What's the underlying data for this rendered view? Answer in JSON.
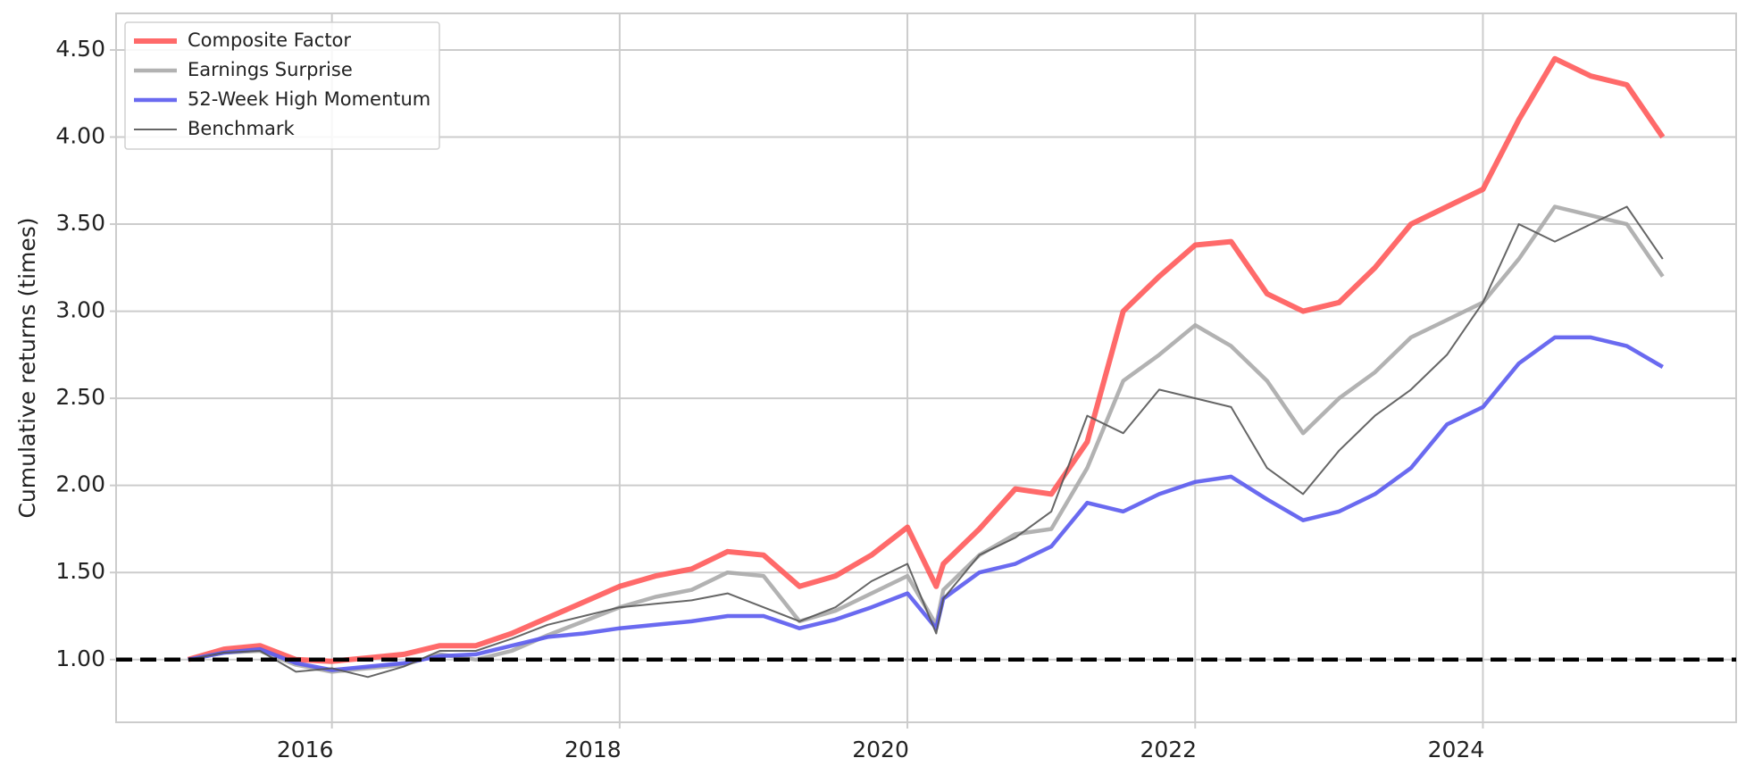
{
  "chart_data": {
    "type": "line",
    "ylabel": "Cumulative returns (times)",
    "x": [
      2015.0,
      2015.25,
      2015.5,
      2015.75,
      2016.0,
      2016.25,
      2016.5,
      2016.75,
      2017.0,
      2017.25,
      2017.5,
      2017.75,
      2018.0,
      2018.25,
      2018.5,
      2018.75,
      2019.0,
      2019.25,
      2019.5,
      2019.75,
      2020.0,
      2020.2,
      2020.25,
      2020.5,
      2020.75,
      2021.0,
      2021.25,
      2021.5,
      2021.75,
      2022.0,
      2022.25,
      2022.5,
      2022.75,
      2023.0,
      2023.25,
      2023.5,
      2023.75,
      2024.0,
      2024.25,
      2024.5,
      2024.75,
      2025.0,
      2025.25
    ],
    "series": [
      {
        "name": "Composite Factor",
        "color": "#ff5a5a",
        "width": 6,
        "values": [
          1.0,
          1.06,
          1.08,
          1.0,
          0.99,
          1.01,
          1.03,
          1.08,
          1.08,
          1.15,
          1.24,
          1.33,
          1.42,
          1.48,
          1.52,
          1.62,
          1.6,
          1.42,
          1.48,
          1.6,
          1.76,
          1.42,
          1.55,
          1.75,
          1.98,
          1.95,
          2.25,
          3.0,
          3.2,
          3.38,
          3.4,
          3.1,
          3.0,
          3.05,
          3.25,
          3.5,
          3.6,
          3.7,
          4.1,
          4.45,
          4.35,
          4.3,
          4.0
        ]
      },
      {
        "name": "Earnings Surprise",
        "color": "#aaaaaa",
        "width": 4.5,
        "values": [
          1.0,
          1.04,
          1.05,
          0.97,
          0.93,
          0.95,
          0.97,
          1.03,
          1.0,
          1.05,
          1.14,
          1.22,
          1.3,
          1.36,
          1.4,
          1.5,
          1.48,
          1.22,
          1.28,
          1.38,
          1.48,
          1.2,
          1.4,
          1.6,
          1.72,
          1.75,
          2.1,
          2.6,
          2.75,
          2.92,
          2.8,
          2.6,
          2.3,
          2.5,
          2.65,
          2.85,
          2.95,
          3.05,
          3.3,
          3.6,
          3.55,
          3.5,
          3.2
        ]
      },
      {
        "name": "52-Week High Momentum",
        "color": "#5a5aee",
        "width": 4.5,
        "values": [
          1.0,
          1.04,
          1.06,
          0.98,
          0.94,
          0.96,
          0.98,
          1.02,
          1.03,
          1.08,
          1.13,
          1.15,
          1.18,
          1.2,
          1.22,
          1.25,
          1.25,
          1.18,
          1.23,
          1.3,
          1.38,
          1.18,
          1.35,
          1.5,
          1.55,
          1.65,
          1.9,
          1.85,
          1.95,
          2.02,
          2.05,
          1.92,
          1.8,
          1.85,
          1.95,
          2.1,
          2.35,
          2.45,
          2.7,
          2.85,
          2.85,
          2.8,
          2.68
        ]
      },
      {
        "name": "Benchmark",
        "color": "#555555",
        "width": 2,
        "values": [
          1.0,
          1.04,
          1.05,
          0.93,
          0.95,
          0.9,
          0.96,
          1.05,
          1.05,
          1.12,
          1.2,
          1.25,
          1.3,
          1.32,
          1.34,
          1.38,
          1.3,
          1.22,
          1.3,
          1.45,
          1.55,
          1.15,
          1.35,
          1.6,
          1.7,
          1.85,
          2.4,
          2.3,
          2.55,
          2.5,
          2.45,
          2.1,
          1.95,
          2.2,
          2.4,
          2.55,
          2.75,
          3.05,
          3.5,
          3.4,
          3.5,
          3.6,
          3.3
        ]
      }
    ],
    "xlim": [
      2014.5,
      2025.76
    ],
    "xticks": [
      2016,
      2018,
      2020,
      2022,
      2024
    ],
    "ylim": [
      0.64,
      4.71
    ],
    "yticks": [
      {
        "value": 1.0,
        "label": "1.00"
      },
      {
        "value": 1.5,
        "label": "1.50"
      },
      {
        "value": 2.0,
        "label": "2.00"
      },
      {
        "value": 2.5,
        "label": "2.50"
      },
      {
        "value": 3.0,
        "label": "3.00"
      },
      {
        "value": 3.5,
        "label": "3.50"
      },
      {
        "value": 4.0,
        "label": "4.00"
      },
      {
        "value": 4.5,
        "label": "4.50"
      }
    ],
    "hline": 1.0,
    "grid": true,
    "legend": "upper left"
  }
}
